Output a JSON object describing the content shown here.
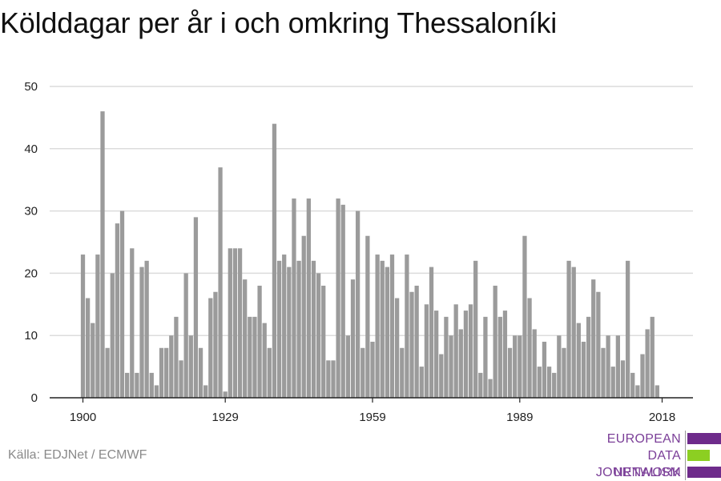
{
  "header": {
    "title": "Kölddagar per år i och omkring Thessaloníki"
  },
  "footer": {
    "source": "Källa: EDJNet / ECMWF"
  },
  "logo": {
    "line1": "EUROPEAN",
    "line2": "DATA JOURNALISM",
    "line3": "NETWORK",
    "colors": {
      "purple": "#6e2b8b",
      "green": "#8ccf22",
      "text": "#7b3f98"
    }
  },
  "chart_data": {
    "type": "bar",
    "title": "Kölddagar per år i och omkring Thessaloníki",
    "xlabel": "",
    "ylabel": "",
    "x_start": 1900,
    "x_end": 2018,
    "xticks": [
      1900,
      1929,
      1959,
      1989,
      2018
    ],
    "ylim": [
      0,
      50
    ],
    "yticks": [
      0,
      10,
      20,
      30,
      40,
      50
    ],
    "grid": true,
    "bar_color": "#9b9b9b",
    "values": [
      23,
      16,
      12,
      23,
      46,
      8,
      20,
      28,
      30,
      4,
      24,
      4,
      21,
      22,
      4,
      2,
      8,
      8,
      10,
      13,
      6,
      20,
      10,
      29,
      8,
      2,
      16,
      17,
      37,
      1,
      24,
      24,
      24,
      19,
      13,
      13,
      18,
      12,
      8,
      44,
      22,
      23,
      21,
      32,
      22,
      26,
      32,
      22,
      20,
      18,
      6,
      6,
      32,
      31,
      10,
      19,
      30,
      8,
      26,
      9,
      23,
      22,
      21,
      23,
      16,
      8,
      23,
      17,
      18,
      5,
      15,
      21,
      14,
      7,
      13,
      10,
      15,
      11,
      14,
      15,
      22,
      4,
      13,
      3,
      18,
      13,
      14,
      8,
      10,
      10,
      26,
      16,
      11,
      5,
      9,
      5,
      4,
      10,
      8,
      22,
      21,
      12,
      9,
      13,
      19,
      17,
      8,
      10,
      5,
      10,
      6,
      22,
      4,
      2,
      7,
      11,
      13,
      2
    ]
  }
}
